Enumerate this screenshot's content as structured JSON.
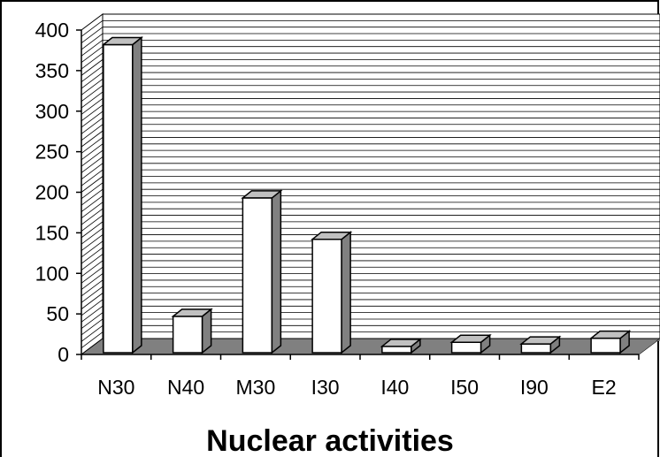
{
  "chart_data": {
    "type": "bar",
    "categories": [
      "N30",
      "N40",
      "M30",
      "I30",
      "I40",
      "I50",
      "I90",
      "E2"
    ],
    "values": [
      382,
      47,
      193,
      142,
      10,
      15,
      13,
      20
    ],
    "title": "",
    "xlabel": "Nuclear activities",
    "ylabel": "",
    "ylim": [
      0,
      400
    ],
    "yticks": [
      0,
      50,
      100,
      150,
      200,
      250,
      300,
      350,
      400
    ],
    "grid": true,
    "style": "3d-column",
    "colors": {
      "bar_face": "#ffffff",
      "bar_side": "#808080",
      "bar_top": "#c0c0c0",
      "floor": "#808080",
      "outline": "#000000",
      "grid": "#000000"
    }
  }
}
